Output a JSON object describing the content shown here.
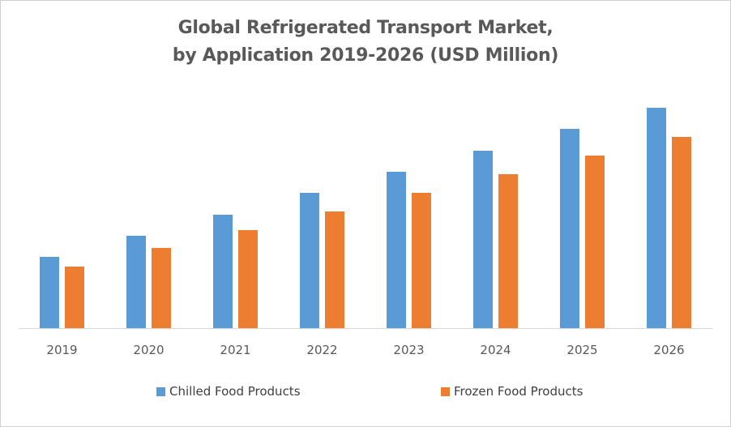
{
  "chart_data": {
    "type": "bar",
    "title": "Global Refrigerated Transport Market, by Application 2019-2026 (USD Million)",
    "title_lines": [
      "Global Refrigerated Transport Market,",
      "by Application 2019-2026 (USD Million)"
    ],
    "xlabel": "",
    "ylabel": "",
    "categories": [
      "2019",
      "2020",
      "2021",
      "2022",
      "2023",
      "2024",
      "2025",
      "2026"
    ],
    "series": [
      {
        "name": "Chilled Food Products",
        "color": "#5b9bd5",
        "values": [
          88,
          114,
          140,
          167,
          193,
          219,
          246,
          272
        ]
      },
      {
        "name": "Frozen Food Products",
        "color": "#ed7d31",
        "values": [
          76,
          99,
          121,
          144,
          167,
          190,
          213,
          236
        ]
      }
    ],
    "ylim": [
      0,
      280
    ],
    "y_axis_visible": false,
    "grid": false,
    "legend_position": "bottom",
    "values_note": "relative values; no y-axis scale shown"
  }
}
